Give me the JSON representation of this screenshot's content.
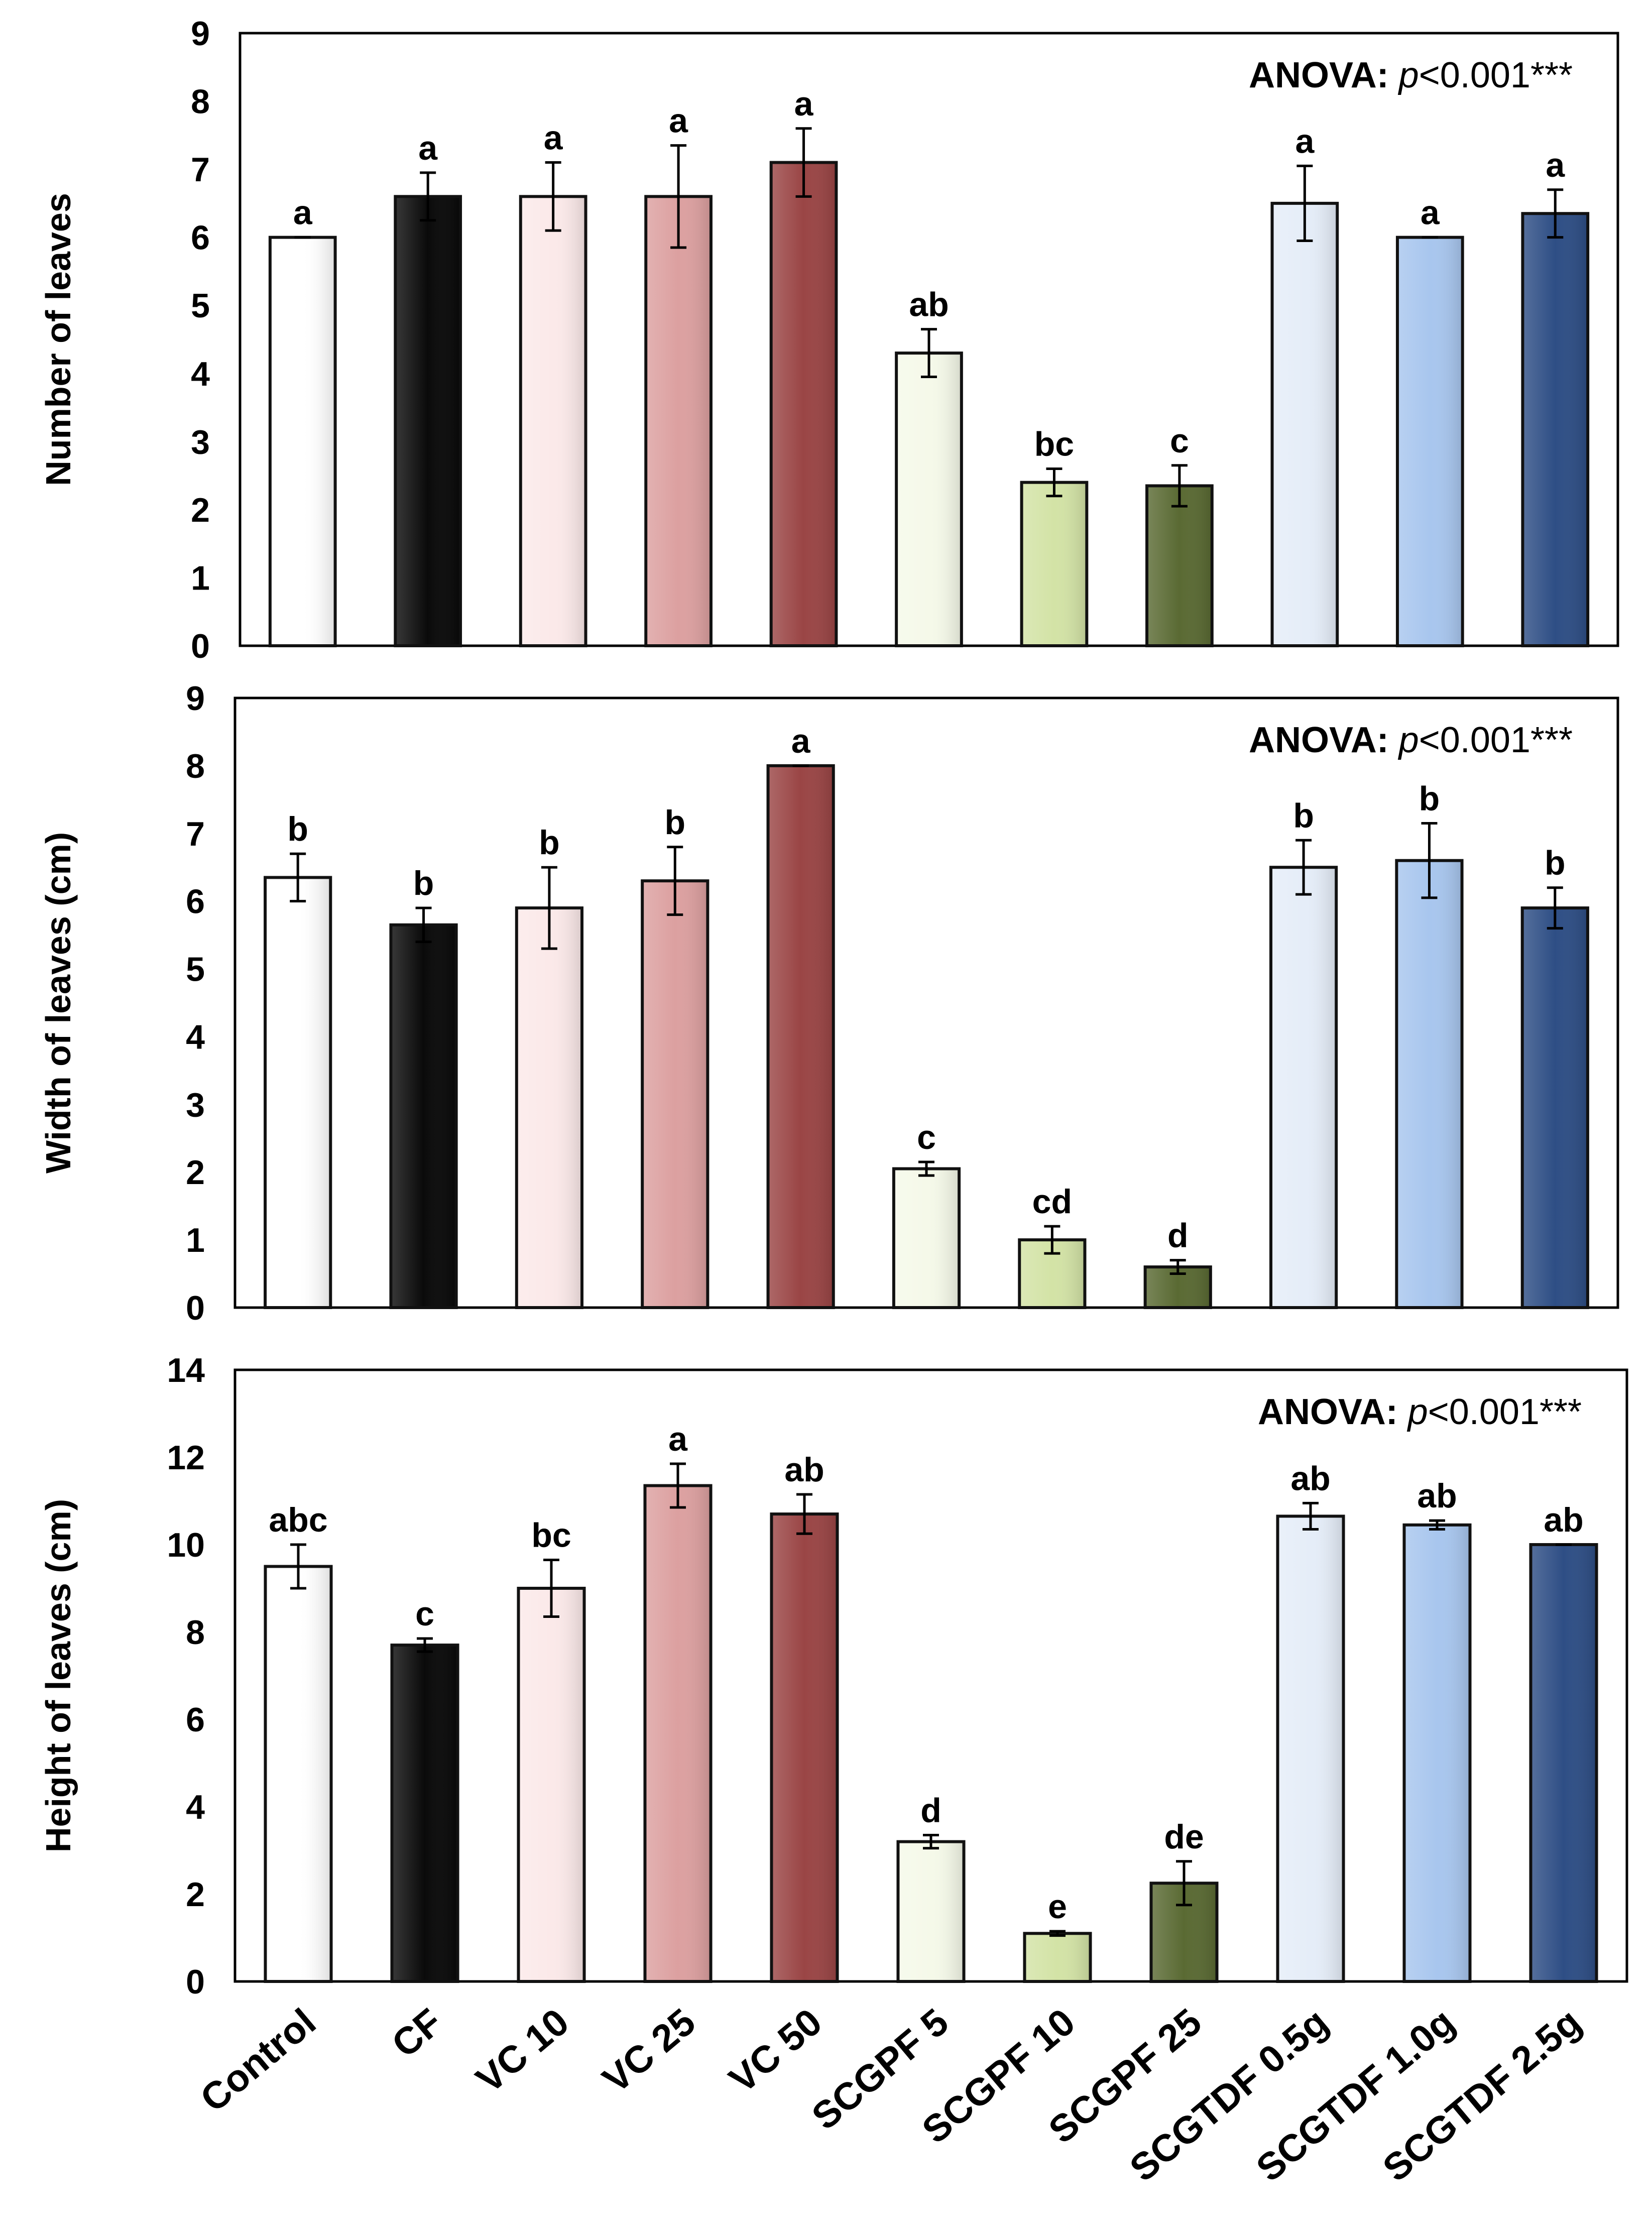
{
  "categories": [
    "Control",
    "CF",
    "VC 10",
    "VC 25",
    "VC 50",
    "SCGPF 5",
    "SCGPF 10",
    "SCGPF 25",
    "SCGTDF 0.5g",
    "SCGTDF 1.0g",
    "SCGTDF 2.5g"
  ],
  "bar_colors": [
    "#ffffff",
    "#0a0a0a",
    "#fbe9e9",
    "#dca0a0",
    "#9a4545",
    "#f5f9e9",
    "#d3e3a6",
    "#5a6a33",
    "#e5edf8",
    "#a8c6ee",
    "#2e4e85"
  ],
  "chart_data": [
    {
      "type": "bar",
      "title": "",
      "xlabel": "",
      "ylabel": "Number of leaves",
      "ylim": [
        0,
        9
      ],
      "yticks": [
        0,
        1,
        2,
        3,
        4,
        5,
        6,
        7,
        8,
        9
      ],
      "annotation": {
        "label": "ANOVA:",
        "p_symbol": "p",
        "p_value": "<0.001***"
      },
      "values": [
        6.0,
        6.6,
        6.6,
        6.6,
        7.1,
        4.3,
        2.4,
        2.35,
        6.5,
        6.0,
        6.35
      ],
      "errors": [
        0.0,
        0.35,
        0.5,
        0.75,
        0.5,
        0.35,
        0.2,
        0.3,
        0.55,
        0.0,
        0.35
      ],
      "letters": [
        "a",
        "a",
        "a",
        "a",
        "a",
        "ab",
        "bc",
        "c",
        "a",
        "a",
        "a"
      ]
    },
    {
      "type": "bar",
      "title": "",
      "xlabel": "",
      "ylabel": "Width of leaves (cm)",
      "ylim": [
        0,
        9
      ],
      "yticks": [
        0,
        1,
        2,
        3,
        4,
        5,
        6,
        7,
        8,
        9
      ],
      "annotation": {
        "label": "ANOVA:",
        "p_symbol": "p",
        "p_value": "<0.001***"
      },
      "values": [
        6.35,
        5.65,
        5.9,
        6.3,
        8.0,
        2.05,
        1.0,
        0.6,
        6.5,
        6.6,
        5.9
      ],
      "errors": [
        0.35,
        0.25,
        0.6,
        0.5,
        0.0,
        0.1,
        0.2,
        0.1,
        0.4,
        0.55,
        0.3
      ],
      "letters": [
        "b",
        "b",
        "b",
        "b",
        "a",
        "c",
        "cd",
        "d",
        "b",
        "b",
        "b"
      ]
    },
    {
      "type": "bar",
      "title": "",
      "xlabel": "",
      "ylabel": "Height of leaves (cm)",
      "ylim": [
        0,
        14
      ],
      "yticks": [
        0,
        2,
        4,
        6,
        8,
        10,
        12,
        14
      ],
      "annotation": {
        "label": "ANOVA:",
        "p_symbol": "p",
        "p_value": "<0.001***"
      },
      "values": [
        9.5,
        7.7,
        9.0,
        11.35,
        10.7,
        3.2,
        1.1,
        2.25,
        10.65,
        10.45,
        10.0
      ],
      "errors": [
        0.5,
        0.15,
        0.65,
        0.5,
        0.45,
        0.15,
        0.05,
        0.5,
        0.3,
        0.1,
        0.0
      ],
      "letters": [
        "abc",
        "c",
        "bc",
        "a",
        "ab",
        "d",
        "e",
        "de",
        "ab",
        "ab",
        "ab"
      ]
    }
  ]
}
